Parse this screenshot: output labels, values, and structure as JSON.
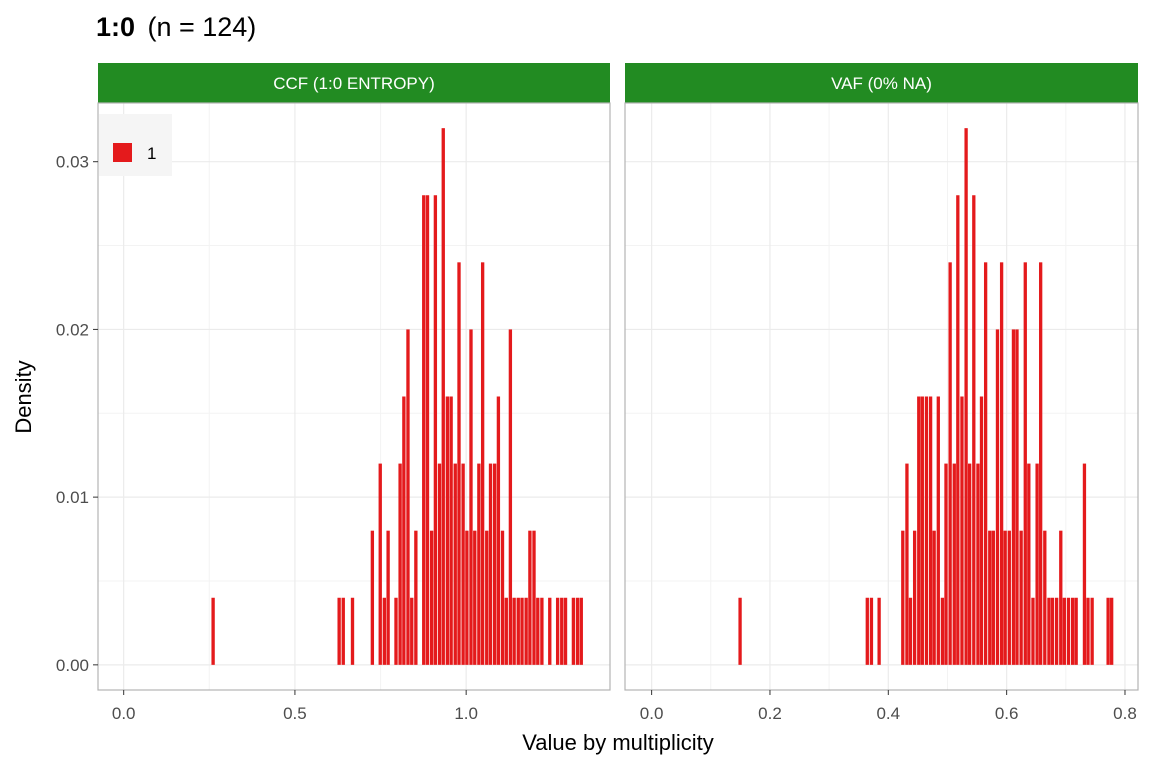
{
  "title": {
    "bold": "1:0",
    "rest": "(n = 124)"
  },
  "xlabel": "Value by multiplicity",
  "ylabel": "Density",
  "colors": {
    "bar": "#E41A1C",
    "strip": "#228B22",
    "grid": "#ebebeb",
    "panel_border": "#b3b3b3",
    "legend_bg": "#f5f5f5"
  },
  "legend": {
    "position": "top-left",
    "items": [
      {
        "label": "1",
        "color": "#E41A1C"
      }
    ]
  },
  "chart_data": [
    {
      "type": "bar",
      "panel": "CCF (1:0 ENTROPY)",
      "xlim": [
        -0.075,
        1.42
      ],
      "ylim": [
        -0.0015,
        0.0335
      ],
      "xticks": [
        {
          "v": 0,
          "label": "0.0"
        },
        {
          "v": 0.5,
          "label": "0.5"
        },
        {
          "v": 1.0,
          "label": "1.0"
        }
      ],
      "yticks": [
        {
          "v": 0,
          "label": "0.00"
        },
        {
          "v": 0.01,
          "label": "0.01"
        },
        {
          "v": 0.02,
          "label": "0.02"
        },
        {
          "v": 0.03,
          "label": "0.03"
        }
      ],
      "grid": true,
      "bin_width": 0.0115,
      "x": [
        0.262,
        0.63,
        0.642,
        0.669,
        0.727,
        0.75,
        0.762,
        0.773,
        0.796,
        0.808,
        0.819,
        0.831,
        0.842,
        0.854,
        0.877,
        0.888,
        0.9,
        0.911,
        0.923,
        0.934,
        0.946,
        0.957,
        0.969,
        0.98,
        0.992,
        1.003,
        1.015,
        1.026,
        1.038,
        1.049,
        1.061,
        1.072,
        1.084,
        1.095,
        1.107,
        1.118,
        1.13,
        1.141,
        1.153,
        1.164,
        1.176,
        1.187,
        1.199,
        1.21,
        1.222,
        1.245,
        1.268,
        1.28,
        1.291,
        1.314,
        1.326,
        1.337
      ],
      "y": [
        0.004,
        0.004,
        0.004,
        0.004,
        0.008,
        0.012,
        0.004,
        0.008,
        0.004,
        0.012,
        0.016,
        0.02,
        0.004,
        0.008,
        0.028,
        0.028,
        0.008,
        0.028,
        0.012,
        0.032,
        0.016,
        0.016,
        0.012,
        0.024,
        0.012,
        0.008,
        0.02,
        0.008,
        0.012,
        0.024,
        0.008,
        0.012,
        0.012,
        0.016,
        0.008,
        0.004,
        0.02,
        0.004,
        0.004,
        0.004,
        0.004,
        0.008,
        0.008,
        0.004,
        0.004,
        0.004,
        0.004,
        0.004,
        0.004,
        0.004,
        0.004,
        0.004
      ]
    },
    {
      "type": "bar",
      "panel": "VAF (0% NA)",
      "xlim": [
        -0.045,
        0.822
      ],
      "ylim": [
        -0.0015,
        0.0335
      ],
      "xticks": [
        {
          "v": 0,
          "label": "0.0"
        },
        {
          "v": 0.2,
          "label": "0.2"
        },
        {
          "v": 0.4,
          "label": "0.4"
        },
        {
          "v": 0.6,
          "label": "0.6"
        },
        {
          "v": 0.8,
          "label": "0.8"
        }
      ],
      "yticks": [
        {
          "v": 0,
          "label": ""
        },
        {
          "v": 0.01,
          "label": ""
        },
        {
          "v": 0.02,
          "label": ""
        },
        {
          "v": 0.03,
          "label": ""
        }
      ],
      "grid": true,
      "bin_width": 0.0066,
      "x": [
        0.15,
        0.365,
        0.372,
        0.385,
        0.425,
        0.432,
        0.438,
        0.445,
        0.452,
        0.458,
        0.465,
        0.472,
        0.478,
        0.485,
        0.492,
        0.498,
        0.505,
        0.512,
        0.518,
        0.525,
        0.532,
        0.538,
        0.545,
        0.552,
        0.558,
        0.565,
        0.572,
        0.578,
        0.585,
        0.592,
        0.598,
        0.605,
        0.612,
        0.618,
        0.625,
        0.632,
        0.638,
        0.645,
        0.652,
        0.658,
        0.665,
        0.672,
        0.678,
        0.685,
        0.692,
        0.698,
        0.705,
        0.712,
        0.718,
        0.732,
        0.738,
        0.745,
        0.772,
        0.778
      ],
      "y": [
        0.004,
        0.004,
        0.004,
        0.004,
        0.008,
        0.012,
        0.004,
        0.008,
        0.016,
        0.016,
        0.016,
        0.016,
        0.008,
        0.016,
        0.004,
        0.012,
        0.024,
        0.012,
        0.028,
        0.016,
        0.032,
        0.012,
        0.028,
        0.012,
        0.016,
        0.024,
        0.008,
        0.008,
        0.02,
        0.024,
        0.008,
        0.008,
        0.02,
        0.02,
        0.008,
        0.024,
        0.012,
        0.004,
        0.012,
        0.024,
        0.008,
        0.004,
        0.004,
        0.004,
        0.008,
        0.004,
        0.004,
        0.004,
        0.004,
        0.012,
        0.004,
        0.004,
        0.004,
        0.004
      ]
    }
  ]
}
